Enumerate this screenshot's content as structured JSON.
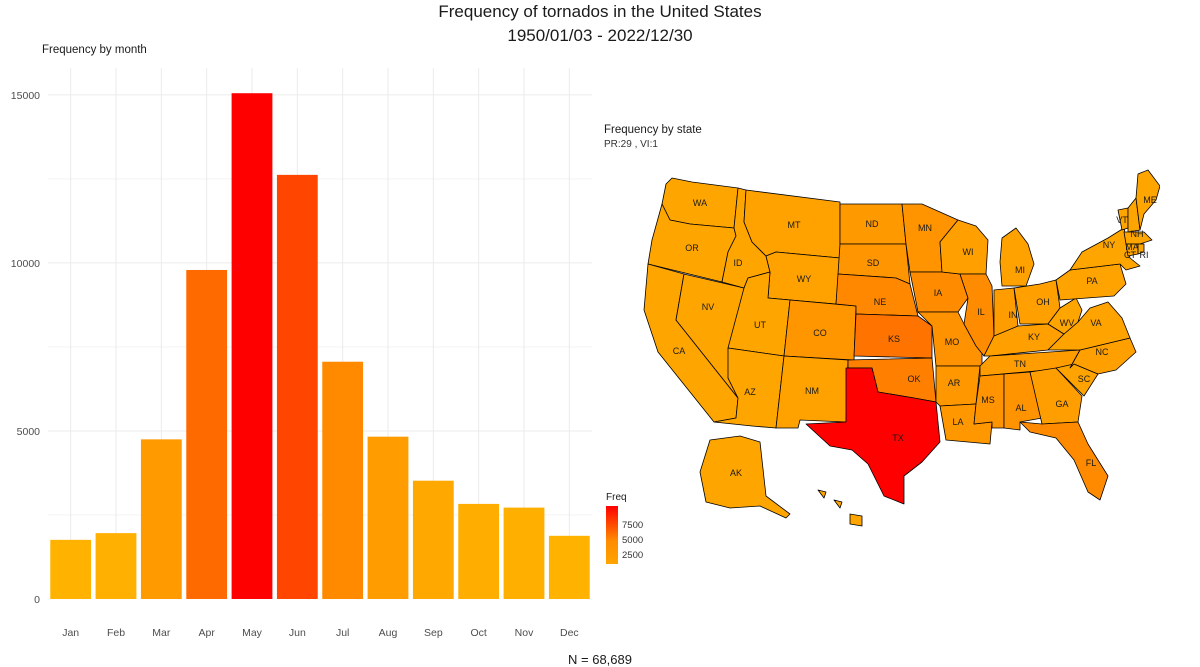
{
  "title": {
    "line1": "Frequency of tornados in the United States",
    "line2": "1950/01/03 - 2022/12/30"
  },
  "footer": "N = 68,689",
  "colors": {
    "low": "#ffa500",
    "mid": "#ff8c00",
    "high": "#ff0000"
  },
  "chart_data": [
    {
      "type": "bar",
      "title": "Frequency by month",
      "categories": [
        "Jan",
        "Feb",
        "Mar",
        "Apr",
        "May",
        "Jun",
        "Jul",
        "Aug",
        "Sep",
        "Oct",
        "Nov",
        "Dec"
      ],
      "values": [
        1760,
        1960,
        4750,
        9790,
        15050,
        12620,
        7060,
        4830,
        3520,
        2830,
        2720,
        1880
      ],
      "bar_colors": [
        "#ffb300",
        "#ffb000",
        "#ff9a00",
        "#ff6a00",
        "#ff0000",
        "#ff4500",
        "#ff8a00",
        "#ff9c00",
        "#ffa900",
        "#ffae00",
        "#ffaf00",
        "#ffb300"
      ],
      "yticks": [
        0,
        5000,
        10000,
        15000
      ],
      "ylim": [
        0,
        15800
      ],
      "xlabel": "",
      "ylabel": "",
      "grid": true
    },
    {
      "type": "choropleth",
      "title": "Frequency by state",
      "subtitle": "PR:29 , VI:1",
      "legend_title": "Freq",
      "legend_ticks": [
        7500,
        5000,
        2500
      ],
      "states": [
        {
          "abbr": "WA",
          "color": "#ffa500"
        },
        {
          "abbr": "OR",
          "color": "#ffa500"
        },
        {
          "abbr": "CA",
          "color": "#ffa500"
        },
        {
          "abbr": "NV",
          "color": "#ffa500"
        },
        {
          "abbr": "ID",
          "color": "#ffa500"
        },
        {
          "abbr": "MT",
          "color": "#ffa200"
        },
        {
          "abbr": "WY",
          "color": "#ffa200"
        },
        {
          "abbr": "UT",
          "color": "#ffa500"
        },
        {
          "abbr": "AZ",
          "color": "#ffa500"
        },
        {
          "abbr": "CO",
          "color": "#ff9600"
        },
        {
          "abbr": "NM",
          "color": "#ffa200"
        },
        {
          "abbr": "ND",
          "color": "#ff9900"
        },
        {
          "abbr": "SD",
          "color": "#ff9500"
        },
        {
          "abbr": "NE",
          "color": "#ff8800"
        },
        {
          "abbr": "KS",
          "color": "#ff7300"
        },
        {
          "abbr": "OK",
          "color": "#ff8000"
        },
        {
          "abbr": "TX",
          "color": "#ff0000"
        },
        {
          "abbr": "MN",
          "color": "#ff9300"
        },
        {
          "abbr": "IA",
          "color": "#ff8c00"
        },
        {
          "abbr": "MO",
          "color": "#ff9200"
        },
        {
          "abbr": "AR",
          "color": "#ff9800"
        },
        {
          "abbr": "LA",
          "color": "#ff9800"
        },
        {
          "abbr": "WI",
          "color": "#ff9f00"
        },
        {
          "abbr": "IL",
          "color": "#ff8c00"
        },
        {
          "abbr": "MI",
          "color": "#ffa200"
        },
        {
          "abbr": "IN",
          "color": "#ff9c00"
        },
        {
          "abbr": "OH",
          "color": "#ffa000"
        },
        {
          "abbr": "KY",
          "color": "#ffa000"
        },
        {
          "abbr": "TN",
          "color": "#ff9c00"
        },
        {
          "abbr": "MS",
          "color": "#ff9300"
        },
        {
          "abbr": "AL",
          "color": "#ff9400"
        },
        {
          "abbr": "GA",
          "color": "#ff9e00"
        },
        {
          "abbr": "FL",
          "color": "#ff8a00"
        },
        {
          "abbr": "SC",
          "color": "#ffa300"
        },
        {
          "abbr": "NC",
          "color": "#ffa000"
        },
        {
          "abbr": "VA",
          "color": "#ffa300"
        },
        {
          "abbr": "WV",
          "color": "#ffa500"
        },
        {
          "abbr": "PA",
          "color": "#ffa300"
        },
        {
          "abbr": "NY",
          "color": "#ffa500"
        },
        {
          "abbr": "VT",
          "color": "#ffa500"
        },
        {
          "abbr": "NH",
          "color": "#ffa500"
        },
        {
          "abbr": "MA",
          "color": "#ffa500"
        },
        {
          "abbr": "CT",
          "color": "#ffa500"
        },
        {
          "abbr": "RI",
          "color": "#ffa500"
        },
        {
          "abbr": "ME",
          "color": "#ffa500"
        },
        {
          "abbr": "AK",
          "color": "#ffa500"
        },
        {
          "abbr": "HI",
          "color": "#ffa500"
        }
      ]
    }
  ]
}
